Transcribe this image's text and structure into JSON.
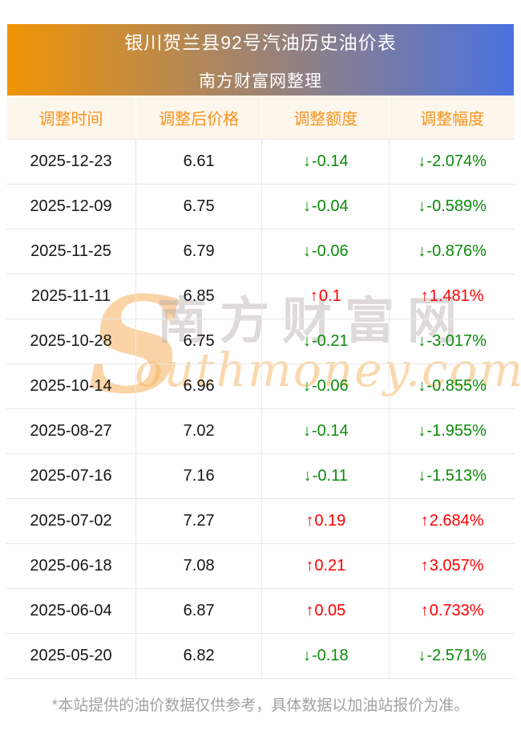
{
  "banner": {
    "title": "银川贺兰县92号汽油历史油价表",
    "subtitle": "南方财富网整理",
    "gradient_from": "#f09405",
    "gradient_to": "#4b72e0"
  },
  "table": {
    "headers": [
      "调整时间",
      "调整后价格",
      "调整额度",
      "调整幅度"
    ],
    "arrow_up": "↑",
    "arrow_down": "↓",
    "colors": {
      "up": "#fe0000",
      "down": "#0b8a0b",
      "header_text": "#f7941e",
      "header_bg": "#fdf6ec"
    },
    "rows": [
      {
        "date": "2025-12-23",
        "price": "6.61",
        "change": "-0.14",
        "change_pct": "-2.074%",
        "direction": "down"
      },
      {
        "date": "2025-12-09",
        "price": "6.75",
        "change": "-0.04",
        "change_pct": "-0.589%",
        "direction": "down"
      },
      {
        "date": "2025-11-25",
        "price": "6.79",
        "change": "-0.06",
        "change_pct": "-0.876%",
        "direction": "down"
      },
      {
        "date": "2025-11-11",
        "price": "6.85",
        "change": "0.1",
        "change_pct": "1.481%",
        "direction": "up"
      },
      {
        "date": "2025-10-28",
        "price": "6.75",
        "change": "-0.21",
        "change_pct": "-3.017%",
        "direction": "down"
      },
      {
        "date": "2025-10-14",
        "price": "6.96",
        "change": "-0.06",
        "change_pct": "-0.855%",
        "direction": "down"
      },
      {
        "date": "2025-08-27",
        "price": "7.02",
        "change": "-0.14",
        "change_pct": "-1.955%",
        "direction": "down"
      },
      {
        "date": "2025-07-16",
        "price": "7.16",
        "change": "-0.11",
        "change_pct": "-1.513%",
        "direction": "down"
      },
      {
        "date": "2025-07-02",
        "price": "7.27",
        "change": "0.19",
        "change_pct": "2.684%",
        "direction": "up"
      },
      {
        "date": "2025-06-18",
        "price": "7.08",
        "change": "0.21",
        "change_pct": "3.057%",
        "direction": "up"
      },
      {
        "date": "2025-06-04",
        "price": "6.87",
        "change": "0.05",
        "change_pct": "0.733%",
        "direction": "up"
      },
      {
        "date": "2025-05-20",
        "price": "6.82",
        "change": "-0.18",
        "change_pct": "-2.571%",
        "direction": "down"
      }
    ]
  },
  "watermark": {
    "initial": "S",
    "cjk": "南方财富网",
    "latin": "outhmoney.com"
  },
  "footer": {
    "note": "*本站提供的油价数据仅供参考，具体数据以加油站报价为准。"
  }
}
